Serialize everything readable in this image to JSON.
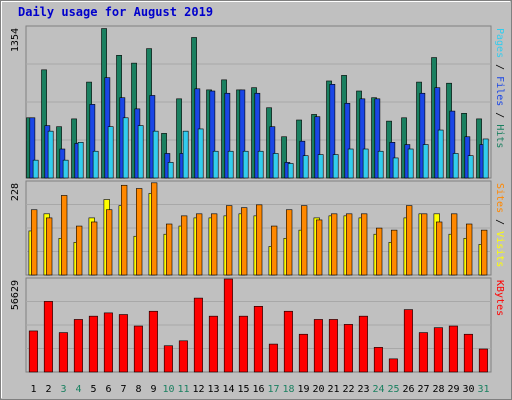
{
  "chart_data": [
    {
      "type": "bar",
      "title": "Daily usage for August 2019",
      "ylabel_parts": [
        "Pages",
        "Files",
        "Hits"
      ],
      "ymax_label": "1354",
      "ylim": [
        0,
        1354
      ],
      "categories": [
        "1",
        "2",
        "3",
        "4",
        "5",
        "6",
        "7",
        "8",
        "9",
        "10",
        "11",
        "12",
        "13",
        "14",
        "15",
        "16",
        "17",
        "18",
        "19",
        "20",
        "21",
        "22",
        "23",
        "24",
        "25",
        "26",
        "27",
        "28",
        "29",
        "30",
        "31"
      ],
      "weekend_days": [
        "3",
        "4",
        "10",
        "11",
        "17",
        "18",
        "24",
        "25",
        "31"
      ],
      "series": [
        {
          "name": "Hits",
          "color": "#1a8060",
          "values": [
            540,
            970,
            460,
            530,
            860,
            1340,
            1100,
            1030,
            1160,
            400,
            710,
            1260,
            790,
            880,
            790,
            810,
            630,
            370,
            520,
            570,
            870,
            920,
            780,
            720,
            510,
            540,
            860,
            1080,
            850,
            580,
            530
          ]
        },
        {
          "name": "Files",
          "color": "#1a46e6",
          "values": [
            540,
            470,
            260,
            310,
            660,
            900,
            720,
            620,
            740,
            220,
            220,
            800,
            780,
            760,
            790,
            760,
            460,
            140,
            330,
            550,
            840,
            670,
            710,
            710,
            320,
            300,
            760,
            810,
            600,
            370,
            300
          ]
        },
        {
          "name": "Pages",
          "color": "#33ccee",
          "values": [
            160,
            420,
            160,
            320,
            240,
            460,
            540,
            470,
            420,
            140,
            420,
            440,
            240,
            240,
            240,
            240,
            220,
            130,
            200,
            210,
            210,
            260,
            260,
            240,
            180,
            260,
            300,
            430,
            220,
            200,
            350
          ]
        }
      ]
    },
    {
      "type": "bar",
      "ylabel_parts": [
        "Sites",
        "Visits"
      ],
      "ymax_label": "228",
      "ylim": [
        0,
        228
      ],
      "categories": [
        "1",
        "2",
        "3",
        "4",
        "5",
        "6",
        "7",
        "8",
        "9",
        "10",
        "11",
        "12",
        "13",
        "14",
        "15",
        "16",
        "17",
        "18",
        "19",
        "20",
        "21",
        "22",
        "23",
        "24",
        "25",
        "26",
        "27",
        "28",
        "29",
        "30",
        "31"
      ],
      "series": [
        {
          "name": "Visits",
          "color": "#ffff00",
          "values": [
            108,
            150,
            90,
            80,
            140,
            185,
            170,
            95,
            200,
            100,
            120,
            140,
            140,
            145,
            150,
            145,
            70,
            90,
            110,
            140,
            145,
            145,
            140,
            100,
            80,
            140,
            150,
            150,
            100,
            90,
            75
          ]
        },
        {
          "name": "Sites",
          "color": "#ff8800",
          "values": [
            160,
            140,
            195,
            120,
            130,
            160,
            220,
            212,
            226,
            125,
            145,
            150,
            150,
            170,
            165,
            172,
            120,
            160,
            170,
            135,
            150,
            150,
            150,
            115,
            110,
            170,
            150,
            130,
            150,
            125,
            110
          ]
        }
      ]
    },
    {
      "type": "bar",
      "ylabel_parts": [
        "KBytes"
      ],
      "ymax_label": "56629",
      "ylim": [
        0,
        56629
      ],
      "categories": [
        "1",
        "2",
        "3",
        "4",
        "5",
        "6",
        "7",
        "8",
        "9",
        "10",
        "11",
        "12",
        "13",
        "14",
        "15",
        "16",
        "17",
        "18",
        "19",
        "20",
        "21",
        "22",
        "23",
        "24",
        "25",
        "26",
        "27",
        "28",
        "29",
        "30",
        "31"
      ],
      "series": [
        {
          "name": "KBytes",
          "color": "#ff0000",
          "values": [
            25000,
            43000,
            24000,
            32000,
            34000,
            36000,
            35000,
            28000,
            37000,
            16000,
            19000,
            45000,
            34000,
            56629,
            34000,
            40000,
            17000,
            37000,
            23000,
            32000,
            32000,
            29000,
            34000,
            15000,
            8000,
            38000,
            24000,
            27000,
            28000,
            23000,
            14000
          ]
        }
      ]
    }
  ],
  "colors": {
    "title": "#0000cc",
    "weekday_label": "#000000",
    "weekend_label": "#1a8060",
    "plot_bg": "#c0c0c0"
  }
}
